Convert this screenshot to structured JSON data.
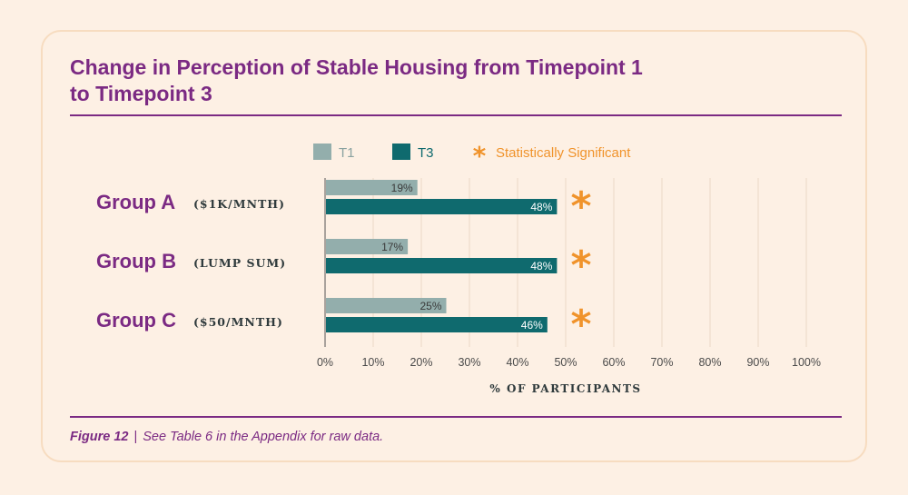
{
  "figure": {
    "caption_label": "Figure 12",
    "caption_separator": "|",
    "caption_text": "See Table 6 in the Appendix for raw data."
  },
  "chart_data": {
    "type": "bar",
    "orientation": "horizontal",
    "title": "Change in Perception of Stable Housing from Timepoint 1 to Timepoint 3",
    "title_lines": [
      "Change in Perception of Stable Housing from Timepoint 1",
      "to Timepoint 3"
    ],
    "xlabel": "% OF PARTICIPANTS",
    "xlim": [
      0,
      100
    ],
    "xticks": [
      0,
      10,
      20,
      30,
      40,
      50,
      60,
      70,
      80,
      90,
      100
    ],
    "xtick_labels": [
      "0%",
      "10%",
      "20%",
      "30%",
      "40%",
      "50%",
      "60%",
      "70%",
      "80%",
      "90%",
      "100%"
    ],
    "grid": true,
    "categories": [
      {
        "name": "Group A",
        "sub": "($1K/MNTH)"
      },
      {
        "name": "Group B",
        "sub": "(LUMP SUM)"
      },
      {
        "name": "Group C",
        "sub": "($50/MNTH)"
      }
    ],
    "series": [
      {
        "name": "T1",
        "color": "#93aeac",
        "values": [
          19,
          17,
          25
        ],
        "labels": [
          "19%",
          "17%",
          "25%"
        ]
      },
      {
        "name": "T3",
        "color": "#0f6a6e",
        "values": [
          48,
          48,
          46
        ],
        "labels": [
          "48%",
          "48%",
          "46%"
        ]
      }
    ],
    "significance": {
      "label": "Statistically Significant",
      "symbol": "*",
      "color": "#f0932b",
      "flags": [
        true,
        true,
        true
      ]
    },
    "legend_position": "top"
  }
}
